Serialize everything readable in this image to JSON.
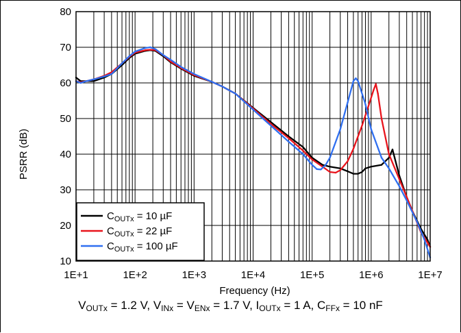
{
  "chart_data": {
    "type": "line",
    "xlabel": "Frequency (Hz)",
    "ylabel": "PSRR (dB)",
    "x_scale": "log",
    "xlim": [
      10,
      10000000
    ],
    "ylim": [
      10,
      80
    ],
    "x_tick_labels": [
      "1E+1",
      "1E+2",
      "1E+3",
      "1E+4",
      "1E+5",
      "1E+6",
      "1E+7"
    ],
    "y_tick_labels": [
      "10",
      "20",
      "30",
      "40",
      "50",
      "60",
      "70",
      "80"
    ],
    "grid": true,
    "legend_position": "bottom-left",
    "series": [
      {
        "name": "COUTx = 10 µF",
        "label_parts": [
          "C",
          "OUTx",
          " = 10 µF"
        ],
        "color": "#000000",
        "points": [
          [
            10,
            61.5
          ],
          [
            12,
            60.5
          ],
          [
            15,
            60.5
          ],
          [
            20,
            60.5
          ],
          [
            30,
            61.5
          ],
          [
            40,
            62.5
          ],
          [
            60,
            65
          ],
          [
            80,
            67
          ],
          [
            100,
            68.2
          ],
          [
            150,
            69
          ],
          [
            180,
            69.2
          ],
          [
            220,
            69
          ],
          [
            300,
            67.5
          ],
          [
            400,
            65.8
          ],
          [
            600,
            64
          ],
          [
            1000,
            62
          ],
          [
            2000,
            60.3
          ],
          [
            3000,
            59
          ],
          [
            5000,
            57
          ],
          [
            10000,
            53
          ],
          [
            20000,
            49
          ],
          [
            40000,
            45
          ],
          [
            70000,
            42
          ],
          [
            100000,
            39
          ],
          [
            150000,
            37
          ],
          [
            200000,
            36.5
          ],
          [
            300000,
            36
          ],
          [
            400000,
            35.2
          ],
          [
            500000,
            34.5
          ],
          [
            600000,
            34.5
          ],
          [
            700000,
            35
          ],
          [
            800000,
            36
          ],
          [
            1000000,
            36.5
          ],
          [
            1500000,
            37
          ],
          [
            2000000,
            39
          ],
          [
            2300000,
            41.3
          ],
          [
            2500000,
            39
          ],
          [
            3000000,
            34
          ],
          [
            4000000,
            28
          ],
          [
            5000000,
            24
          ],
          [
            7000000,
            19
          ],
          [
            9000000,
            16
          ],
          [
            10000000,
            14
          ]
        ]
      },
      {
        "name": "COUTx = 22 µF",
        "label_parts": [
          "C",
          "OUTx",
          " = 22 µF"
        ],
        "color": "#e8141c",
        "points": [
          [
            10,
            60.5
          ],
          [
            12,
            60.2
          ],
          [
            15,
            60.5
          ],
          [
            20,
            61
          ],
          [
            30,
            62
          ],
          [
            40,
            63
          ],
          [
            60,
            65.5
          ],
          [
            80,
            67.3
          ],
          [
            100,
            68.5
          ],
          [
            150,
            69.2
          ],
          [
            180,
            69.3
          ],
          [
            220,
            69.2
          ],
          [
            300,
            67.8
          ],
          [
            400,
            66
          ],
          [
            600,
            64.2
          ],
          [
            1000,
            62.2
          ],
          [
            2000,
            60.3
          ],
          [
            3000,
            59
          ],
          [
            5000,
            57
          ],
          [
            10000,
            52.8
          ],
          [
            20000,
            48.5
          ],
          [
            40000,
            44.5
          ],
          [
            70000,
            41
          ],
          [
            100000,
            38.5
          ],
          [
            150000,
            36.5
          ],
          [
            200000,
            35
          ],
          [
            250000,
            34.8
          ],
          [
            300000,
            35.5
          ],
          [
            400000,
            38
          ],
          [
            500000,
            41.5
          ],
          [
            700000,
            48
          ],
          [
            900000,
            53.5
          ],
          [
            1100000,
            58
          ],
          [
            1200000,
            59.7
          ],
          [
            1300000,
            57
          ],
          [
            1500000,
            50
          ],
          [
            2000000,
            40
          ],
          [
            3000000,
            33
          ],
          [
            4000000,
            28
          ],
          [
            5000000,
            24
          ],
          [
            7000000,
            18
          ],
          [
            10000000,
            14
          ]
        ]
      },
      {
        "name": "COUTx = 100 µF",
        "label_parts": [
          "C",
          "OUTx",
          " = 100 µF"
        ],
        "color": "#2f6ff0",
        "points": [
          [
            10,
            60.5
          ],
          [
            12,
            60
          ],
          [
            15,
            60.5
          ],
          [
            20,
            61
          ],
          [
            30,
            61.8
          ],
          [
            40,
            62.5
          ],
          [
            60,
            65.5
          ],
          [
            80,
            67.5
          ],
          [
            100,
            68.8
          ],
          [
            150,
            69.8
          ],
          [
            180,
            70
          ],
          [
            220,
            69.5
          ],
          [
            300,
            67.8
          ],
          [
            400,
            66.5
          ],
          [
            600,
            64.5
          ],
          [
            1000,
            62.5
          ],
          [
            2000,
            60.3
          ],
          [
            3000,
            59
          ],
          [
            5000,
            57
          ],
          [
            10000,
            52.5
          ],
          [
            20000,
            48
          ],
          [
            40000,
            43.5
          ],
          [
            70000,
            40
          ],
          [
            100000,
            37
          ],
          [
            120000,
            35.8
          ],
          [
            140000,
            35.7
          ],
          [
            170000,
            37
          ],
          [
            200000,
            39
          ],
          [
            300000,
            47
          ],
          [
            400000,
            54.5
          ],
          [
            500000,
            60.5
          ],
          [
            550000,
            61.3
          ],
          [
            600000,
            60.5
          ],
          [
            800000,
            54
          ],
          [
            1000000,
            47
          ],
          [
            1500000,
            39
          ],
          [
            2000000,
            36
          ],
          [
            3000000,
            31
          ],
          [
            4000000,
            27
          ],
          [
            6000000,
            21
          ],
          [
            8000000,
            16
          ],
          [
            10000000,
            11
          ]
        ]
      }
    ]
  },
  "caption": {
    "segments": [
      {
        "t": "V"
      },
      {
        "sub": "OUTx"
      },
      {
        "t": " = 1.2 V, V"
      },
      {
        "sub": "INx"
      },
      {
        "t": " = V"
      },
      {
        "sub": "ENx"
      },
      {
        "t": " = 1.7 V, I"
      },
      {
        "sub": "OUTx"
      },
      {
        "t": " = 1 A, C"
      },
      {
        "sub": "FFx"
      },
      {
        "t": " = 10 nF"
      }
    ]
  }
}
